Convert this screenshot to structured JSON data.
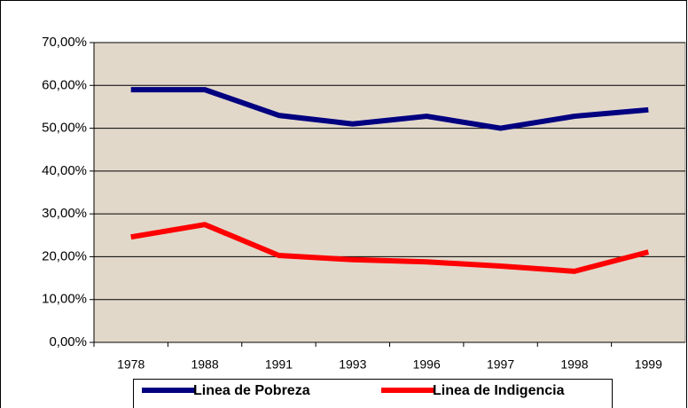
{
  "chart_data": {
    "type": "line",
    "categories": [
      "1978",
      "1988",
      "1991",
      "1993",
      "1996",
      "1997",
      "1998",
      "1999"
    ],
    "series": [
      {
        "name": "Linea de Pobreza",
        "color": "#000080",
        "values": [
          59,
          59,
          53,
          51,
          52.8,
          50,
          52.8,
          54.3
        ]
      },
      {
        "name": "Linea de Indigencia",
        "color": "#ff0000",
        "values": [
          24.6,
          27.5,
          20.3,
          19.3,
          18.8,
          17.8,
          16.6,
          21.1
        ]
      }
    ],
    "ylim": [
      0,
      70
    ],
    "yticks": [
      {
        "value": 0,
        "label": "0,00%"
      },
      {
        "value": 10,
        "label": "10,00%"
      },
      {
        "value": 20,
        "label": "20,00%"
      },
      {
        "value": 30,
        "label": "30,00%"
      },
      {
        "value": 40,
        "label": "40,00%"
      },
      {
        "value": 50,
        "label": "50,00%"
      },
      {
        "value": 60,
        "label": "60,00%"
      },
      {
        "value": 70,
        "label": "70,00%"
      }
    ],
    "grid": true,
    "legend": "bottom"
  }
}
